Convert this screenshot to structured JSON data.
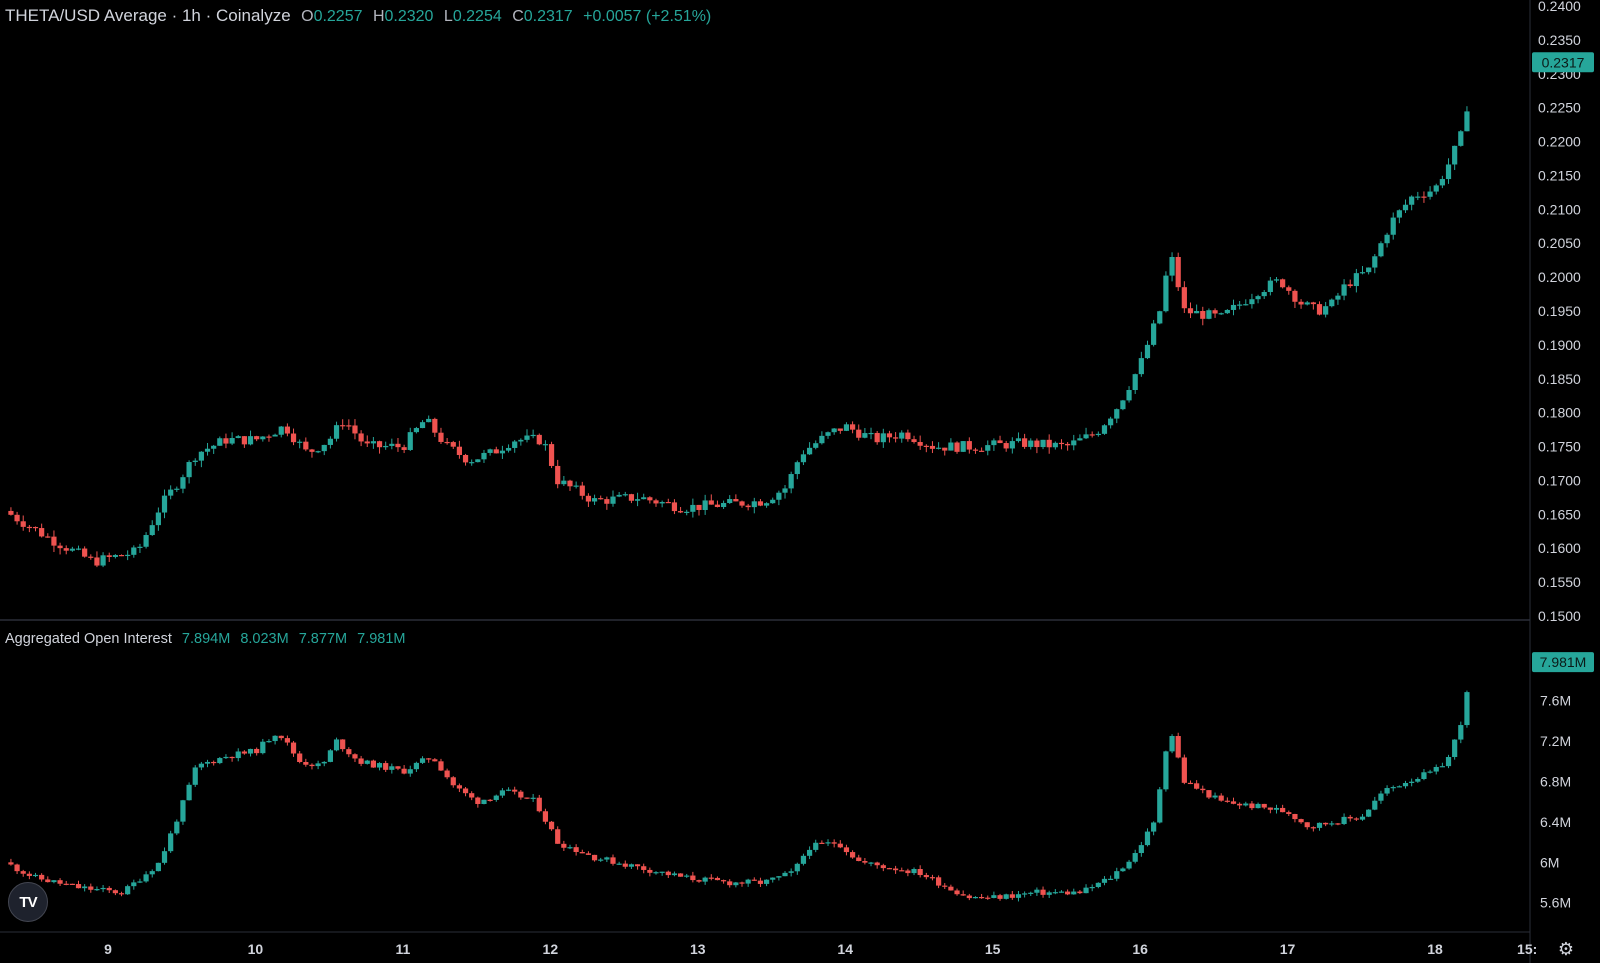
{
  "header": {
    "title": "THETA/USD Average · 1h · Coinalyze",
    "o_label": "O",
    "o_value": "0.2257",
    "h_label": "H",
    "h_value": "0.2320",
    "l_label": "L",
    "l_value": "0.2254",
    "c_label": "C",
    "c_value": "0.2317",
    "change": "+0.0057 (+2.51%)"
  },
  "oi_header": {
    "title": "Aggregated Open Interest",
    "values": [
      "7.894M",
      "8.023M",
      "7.877M",
      "7.981M"
    ]
  },
  "colors": {
    "up": "#26a69a",
    "down": "#ef5350",
    "background": "#000000",
    "axis_text": "#d1d4dc"
  },
  "logo": {
    "icon": "tradingview-logo-icon",
    "text": "TV"
  },
  "settings": {
    "icon": "gear-icon",
    "glyph": "⚙"
  },
  "chart_data": [
    {
      "type": "candlestick",
      "name": "THETA/USD Average",
      "interval": "1h",
      "y_ticks": [
        "0.2400",
        "0.2350",
        "0.2300",
        "0.2250",
        "0.2200",
        "0.2150",
        "0.2100",
        "0.2050",
        "0.2000",
        "0.1950",
        "0.1900",
        "0.1850",
        "0.1800",
        "0.1750",
        "0.1700",
        "0.1650",
        "0.1600",
        "0.1550",
        "0.1500"
      ],
      "ylim": [
        0.15,
        0.24
      ],
      "last_value": 0.2317,
      "last_label": "0.2317",
      "ohlc_last": {
        "open": 0.2257,
        "high": 0.232,
        "low": 0.2254,
        "close": 0.2317
      },
      "x_ticks": [
        "9",
        "10",
        "11",
        "12",
        "13",
        "14",
        "15",
        "16",
        "17",
        "18",
        "15:"
      ],
      "x_tick_days": [
        9,
        10,
        11,
        12,
        13,
        14,
        15,
        16,
        17,
        18,
        18.625
      ],
      "xlim_days": [
        8.3,
        18.625
      ],
      "close_path": [
        [
          8.3,
          0.1655
        ],
        [
          8.6,
          0.1615
        ],
        [
          8.9,
          0.158
        ],
        [
          9.2,
          0.1595
        ],
        [
          9.35,
          0.166
        ],
        [
          9.45,
          0.169
        ],
        [
          9.6,
          0.174
        ],
        [
          9.8,
          0.176
        ],
        [
          10.0,
          0.176
        ],
        [
          10.2,
          0.178
        ],
        [
          10.35,
          0.174
        ],
        [
          10.5,
          0.176
        ],
        [
          10.6,
          0.179
        ],
        [
          10.75,
          0.175
        ],
        [
          11.0,
          0.175
        ],
        [
          11.15,
          0.179
        ],
        [
          11.3,
          0.175
        ],
        [
          11.45,
          0.173
        ],
        [
          11.6,
          0.174
        ],
        [
          11.75,
          0.176
        ],
        [
          11.95,
          0.176
        ],
        [
          12.05,
          0.17
        ],
        [
          12.3,
          0.167
        ],
        [
          12.6,
          0.1675
        ],
        [
          12.9,
          0.166
        ],
        [
          13.2,
          0.1665
        ],
        [
          13.45,
          0.167
        ],
        [
          13.6,
          0.169
        ],
        [
          13.7,
          0.174
        ],
        [
          13.9,
          0.177
        ],
        [
          14.0,
          0.178
        ],
        [
          14.2,
          0.176
        ],
        [
          14.4,
          0.177
        ],
        [
          14.6,
          0.175
        ],
        [
          14.9,
          0.175
        ],
        [
          15.2,
          0.1755
        ],
        [
          15.5,
          0.175
        ],
        [
          15.7,
          0.177
        ],
        [
          15.85,
          0.181
        ],
        [
          16.0,
          0.187
        ],
        [
          16.15,
          0.196
        ],
        [
          16.2,
          0.204
        ],
        [
          16.3,
          0.195
        ],
        [
          16.55,
          0.194
        ],
        [
          16.8,
          0.198
        ],
        [
          16.95,
          0.1995
        ],
        [
          17.1,
          0.196
        ],
        [
          17.2,
          0.195
        ],
        [
          17.3,
          0.196
        ],
        [
          17.4,
          0.199
        ],
        [
          17.55,
          0.201
        ],
        [
          17.7,
          0.208
        ],
        [
          17.85,
          0.212
        ],
        [
          18.0,
          0.213
        ],
        [
          18.1,
          0.217
        ],
        [
          18.2,
          0.222
        ],
        [
          18.25,
          0.2317
        ]
      ]
    },
    {
      "type": "candlestick",
      "name": "Aggregated Open Interest",
      "y_ticks": [
        "7.6M",
        "7.2M",
        "6.8M",
        "6.4M",
        "6M",
        "5.6M"
      ],
      "y_tick_values": [
        7.6,
        7.2,
        6.8,
        6.4,
        6.0,
        5.6
      ],
      "ylim_millions": [
        5.35,
        8.2
      ],
      "last_value_millions": 7.981,
      "last_label": "7.981M",
      "close_path": [
        [
          8.3,
          6.0
        ],
        [
          8.5,
          5.85
        ],
        [
          8.8,
          5.75
        ],
        [
          9.1,
          5.7
        ],
        [
          9.35,
          6.0
        ],
        [
          9.5,
          6.55
        ],
        [
          9.6,
          6.95
        ],
        [
          9.8,
          7.05
        ],
        [
          10.0,
          7.1
        ],
        [
          10.15,
          7.3
        ],
        [
          10.3,
          7.0
        ],
        [
          10.45,
          6.95
        ],
        [
          10.55,
          7.2
        ],
        [
          10.7,
          7.0
        ],
        [
          11.0,
          6.9
        ],
        [
          11.2,
          7.05
        ],
        [
          11.35,
          6.75
        ],
        [
          11.5,
          6.6
        ],
        [
          11.7,
          6.7
        ],
        [
          11.9,
          6.6
        ],
        [
          12.05,
          6.2
        ],
        [
          12.3,
          6.05
        ],
        [
          12.6,
          5.95
        ],
        [
          12.9,
          5.85
        ],
        [
          13.2,
          5.8
        ],
        [
          13.45,
          5.8
        ],
        [
          13.65,
          5.9
        ],
        [
          13.75,
          6.15
        ],
        [
          13.95,
          6.2
        ],
        [
          14.1,
          6.0
        ],
        [
          14.3,
          5.95
        ],
        [
          14.5,
          5.9
        ],
        [
          14.7,
          5.75
        ],
        [
          14.85,
          5.65
        ],
        [
          15.0,
          5.65
        ],
        [
          15.3,
          5.7
        ],
        [
          15.6,
          5.7
        ],
        [
          15.8,
          5.85
        ],
        [
          15.95,
          6.05
        ],
        [
          16.1,
          6.4
        ],
        [
          16.15,
          6.9
        ],
        [
          16.2,
          7.35
        ],
        [
          16.3,
          6.8
        ],
        [
          16.55,
          6.6
        ],
        [
          16.8,
          6.55
        ],
        [
          17.0,
          6.5
        ],
        [
          17.15,
          6.35
        ],
        [
          17.3,
          6.4
        ],
        [
          17.5,
          6.45
        ],
        [
          17.65,
          6.7
        ],
        [
          17.8,
          6.8
        ],
        [
          18.0,
          6.9
        ],
        [
          18.1,
          7.05
        ],
        [
          18.2,
          7.5
        ],
        [
          18.25,
          7.98
        ]
      ]
    }
  ]
}
